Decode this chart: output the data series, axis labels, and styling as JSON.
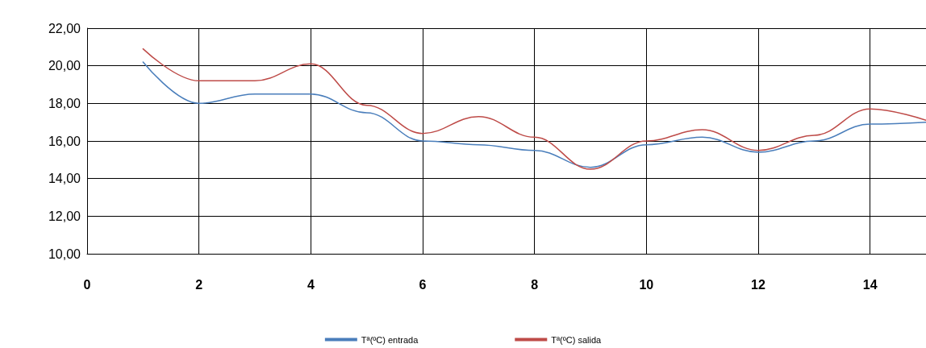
{
  "chart_data": {
    "type": "line",
    "x": [
      1,
      2,
      3,
      4,
      5,
      6,
      7,
      8,
      9,
      10,
      11,
      12,
      13,
      14,
      15
    ],
    "series": [
      {
        "name": "Tª(ºC) entrada",
        "color": "#4a7ebb",
        "values": [
          20.2,
          18.0,
          18.5,
          18.5,
          17.5,
          16.0,
          15.8,
          15.5,
          14.6,
          15.8,
          16.2,
          15.4,
          16.0,
          16.9,
          17.0
        ]
      },
      {
        "name": "Tª(ºC) salida",
        "color": "#be4b48",
        "values": [
          20.9,
          19.2,
          19.2,
          20.1,
          17.9,
          16.4,
          17.3,
          16.2,
          14.5,
          16.0,
          16.6,
          15.5,
          16.3,
          17.7,
          17.1
        ]
      }
    ],
    "xlim": [
      0,
      15
    ],
    "xticks": [
      0,
      2,
      4,
      6,
      8,
      10,
      12,
      14
    ],
    "ylim": [
      10,
      22
    ],
    "yticks": [
      {
        "value": 10,
        "label": "10,00"
      },
      {
        "value": 12,
        "label": "12,00"
      },
      {
        "value": 14,
        "label": "14,00"
      },
      {
        "value": 16,
        "label": "16,00"
      },
      {
        "value": 18,
        "label": "18,00"
      },
      {
        "value": 20,
        "label": "20,00"
      },
      {
        "value": 22,
        "label": "22,00"
      }
    ],
    "grid": true,
    "legend": "bottom",
    "marker": "none",
    "line_style": "solid"
  }
}
